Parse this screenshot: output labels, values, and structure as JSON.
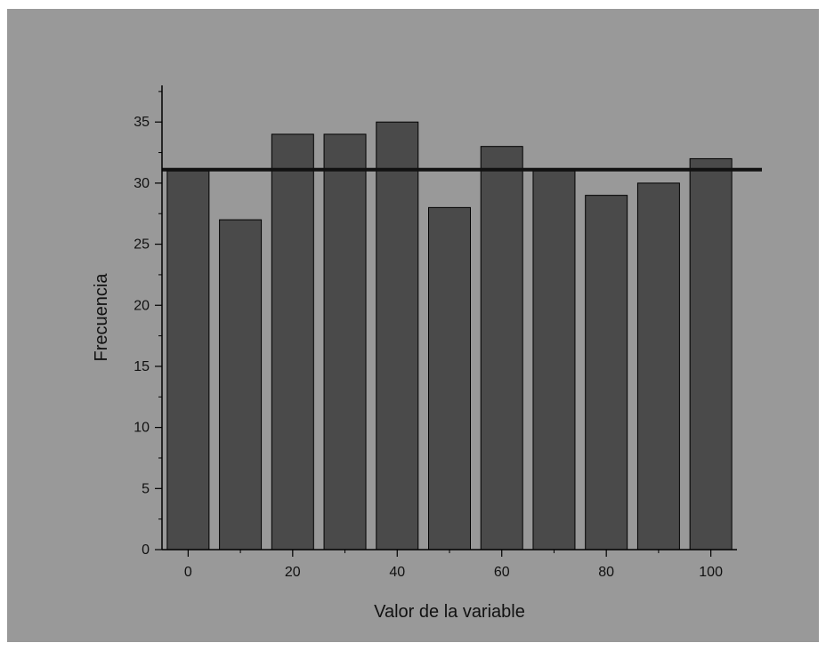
{
  "chart_data": {
    "type": "bar",
    "title": "",
    "xlabel": "Valor de la variable",
    "ylabel": "Frecuencia",
    "x": [
      0,
      10,
      20,
      30,
      40,
      50,
      60,
      70,
      80,
      90,
      100
    ],
    "values": [
      31,
      27,
      34,
      34,
      35,
      28,
      33,
      31,
      29,
      30,
      32
    ],
    "xlim": [
      -5,
      105
    ],
    "ylim": [
      0,
      38
    ],
    "xticks": [
      0,
      20,
      40,
      60,
      80,
      100
    ],
    "yticks": [
      0,
      5,
      10,
      15,
      20,
      25,
      30,
      35
    ],
    "reference_line_y": 31.1,
    "grid": false,
    "colors": {
      "background": "#999999",
      "bar": "#4a4a4a",
      "bar_edge": "#000000",
      "reference_line": "#111111"
    }
  }
}
